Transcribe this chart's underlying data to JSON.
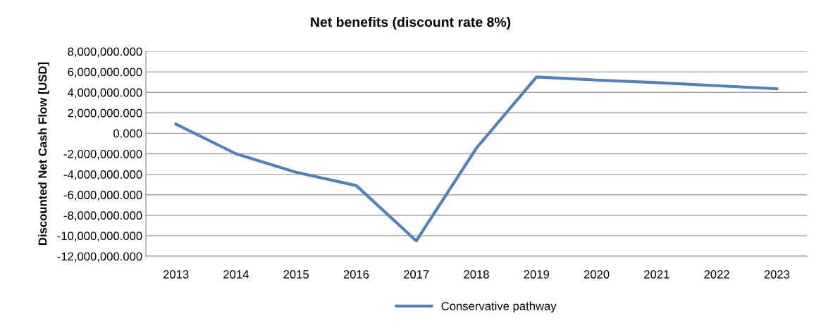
{
  "chart_data": {
    "type": "line",
    "title": "Net benefits (discount rate 8%)",
    "ylabel": "Discounted Net Cash Flow [USD]",
    "categories": [
      "2013",
      "2014",
      "2015",
      "2016",
      "2017",
      "2018",
      "2019",
      "2020",
      "2021",
      "2022",
      "2023"
    ],
    "series": [
      {
        "name": "Conservative pathway",
        "color": "#4f81bd",
        "values": [
          900000,
          -2000000,
          -3800000,
          -5100000,
          -10500000,
          -1450000,
          5500000,
          5200000,
          4950000,
          4650000,
          4350000
        ]
      }
    ],
    "ylim": [
      -12000000,
      8000000
    ],
    "yticks": [
      {
        "value": -12000000,
        "label": "-12,000,000.000"
      },
      {
        "value": -10000000,
        "label": "-10,000,000.000"
      },
      {
        "value": -8000000,
        "label": "-8,000,000.000"
      },
      {
        "value": -6000000,
        "label": "-6,000,000.000"
      },
      {
        "value": -4000000,
        "label": "-4,000,000.000"
      },
      {
        "value": -2000000,
        "label": "-2,000,000.000"
      },
      {
        "value": 0,
        "label": "0.000"
      },
      {
        "value": 2000000,
        "label": "2,000,000.000"
      },
      {
        "value": 4000000,
        "label": "4,000,000.000"
      },
      {
        "value": 6000000,
        "label": "6,000,000.000"
      },
      {
        "value": 8000000,
        "label": "8,000,000.000"
      }
    ],
    "grid": "y",
    "legend": "bottom",
    "marker": "none",
    "line_style": "solid"
  }
}
